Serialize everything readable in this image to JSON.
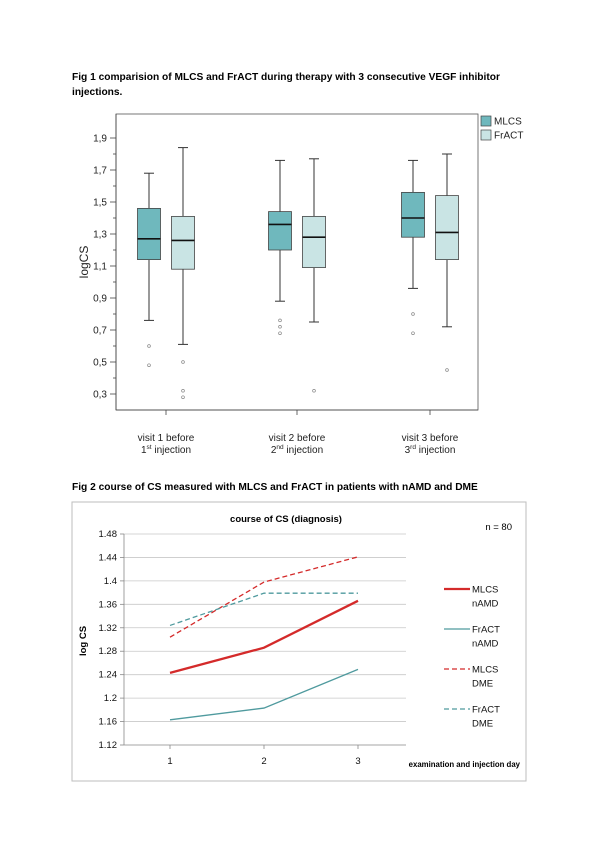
{
  "fig1": {
    "caption": "Fig 1 comparision of MLCS and FrACT during therapy with 3 consecutive VEGF inhibitor injections.",
    "chart_data": {
      "type": "boxplot",
      "ylabel": "logCS",
      "ylim": [
        0.2,
        2.05
      ],
      "yticks": [
        "0,3",
        "0,5",
        "0,7",
        "0,9",
        "1,1",
        "1,3",
        "1,5",
        "1,7",
        "1,9"
      ],
      "ytick_values": [
        0.3,
        0.5,
        0.7,
        0.9,
        1.1,
        1.3,
        1.5,
        1.7,
        1.9
      ],
      "categories": [
        {
          "line1": "visit 1 before",
          "num": "1",
          "sup": "st",
          "rest": " injection"
        },
        {
          "line1": "visit 2 before",
          "num": "2",
          "sup": "nd",
          "rest": " injection"
        },
        {
          "line1": "visit 3 before",
          "num": "3",
          "sup": "rd",
          "rest": " injection"
        }
      ],
      "legend_position": "top-right",
      "series": [
        {
          "name": "MLCS",
          "color": "#6fb8bd",
          "boxes": [
            {
              "whisker_low": 0.76,
              "q1": 1.14,
              "median": 1.27,
              "q3": 1.46,
              "whisker_high": 1.68,
              "outliers": [
                0.6,
                0.48
              ]
            },
            {
              "whisker_low": 0.88,
              "q1": 1.2,
              "median": 1.36,
              "q3": 1.44,
              "whisker_high": 1.76,
              "outliers": [
                0.76,
                0.72,
                0.68
              ]
            },
            {
              "whisker_low": 0.96,
              "q1": 1.28,
              "median": 1.4,
              "q3": 1.56,
              "whisker_high": 1.76,
              "outliers": [
                0.8,
                0.68
              ]
            }
          ]
        },
        {
          "name": "FrACT",
          "color": "#c9e4e4",
          "boxes": [
            {
              "whisker_low": 0.61,
              "q1": 1.08,
              "median": 1.26,
              "q3": 1.41,
              "whisker_high": 1.84,
              "outliers": [
                0.5,
                0.32,
                0.28
              ]
            },
            {
              "whisker_low": 0.75,
              "q1": 1.09,
              "median": 1.28,
              "q3": 1.41,
              "whisker_high": 1.77,
              "outliers": [
                0.32
              ]
            },
            {
              "whisker_low": 0.72,
              "q1": 1.14,
              "median": 1.31,
              "q3": 1.54,
              "whisker_high": 1.8,
              "outliers": [
                0.45
              ]
            }
          ]
        }
      ]
    }
  },
  "fig2": {
    "caption": "Fig 2 course of CS measured with MLCS and FrACT in patients with nAMD and DME",
    "chart_data": {
      "type": "line",
      "title": "course of CS (diagnosis)",
      "annotation": "n = 80",
      "xlabel": "examination and injection day",
      "ylabel": "log CS",
      "x": [
        "1",
        "2",
        "3"
      ],
      "ylim": [
        1.12,
        1.48
      ],
      "yticks": [
        "1.12",
        "1.16",
        "1.2",
        "1.24",
        "1.28",
        "1.32",
        "1.36",
        "1.4",
        "1.44",
        "1.48"
      ],
      "ytick_values": [
        1.12,
        1.16,
        1.2,
        1.24,
        1.28,
        1.32,
        1.36,
        1.4,
        1.44,
        1.48
      ],
      "grid": true,
      "legend_position": "right",
      "series": [
        {
          "name_line1": "MLCS",
          "name_line2": "nAMD",
          "color": "#d42a2a",
          "dashed": false,
          "bold": true,
          "values": [
            1.243,
            1.286,
            1.366
          ]
        },
        {
          "name_line1": "FrACT",
          "name_line2": "nAMD",
          "color": "#4f9a9e",
          "dashed": false,
          "bold": false,
          "values": [
            1.163,
            1.183,
            1.249
          ]
        },
        {
          "name_line1": "MLCS",
          "name_line2": "DME",
          "color": "#d42a2a",
          "dashed": true,
          "bold": false,
          "values": [
            1.304,
            1.398,
            1.441
          ]
        },
        {
          "name_line1": "FrACT",
          "name_line2": "DME",
          "color": "#4f9a9e",
          "dashed": true,
          "bold": false,
          "values": [
            1.324,
            1.379,
            1.379
          ]
        }
      ]
    }
  }
}
